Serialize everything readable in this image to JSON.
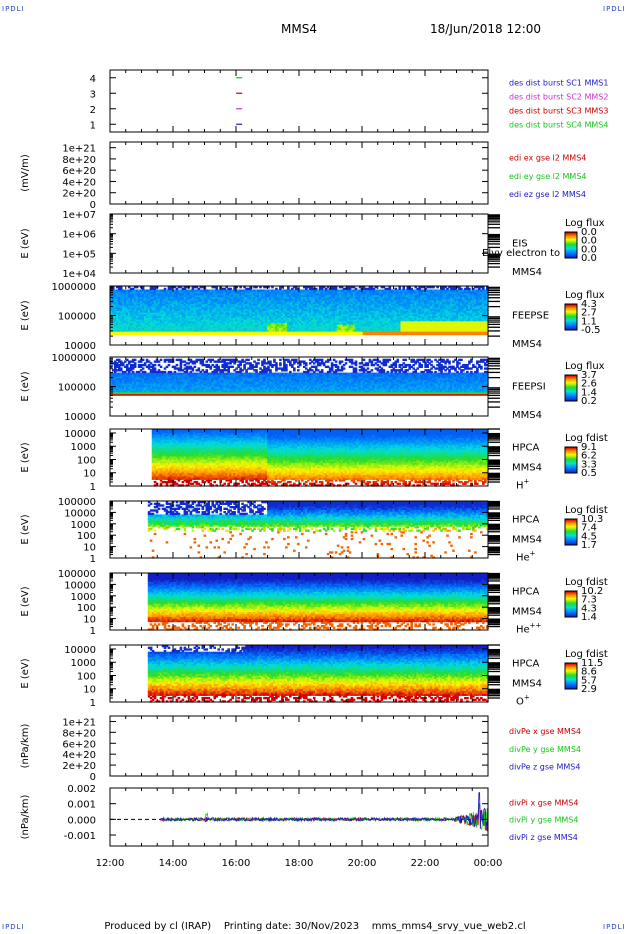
{
  "header": {
    "corner_left_top": "IPDLI",
    "corner_right_top": "IPDLI",
    "corner_left_bottom": "IPDLI",
    "corner_right_bottom": "IPDLI",
    "spacecraft": "MMS4",
    "datetime": "18/Jun/2018 12:00"
  },
  "footer": {
    "text": "Produced by cl (IRAP)    Printing date: 30/Nov/2023    mms_mms4_srvy_vue_web2.cl"
  },
  "colors": {
    "red": "#c80000",
    "green": "#19c219",
    "blue": "#1a1ac8",
    "magenta": "#c832c8"
  },
  "chart_data": [
    {
      "type": "line",
      "panel": "burst",
      "ylabel": "",
      "ylim": [
        0.5,
        4.5
      ],
      "yticks": [
        "4",
        "3",
        "2",
        "1"
      ],
      "ytick_values": [
        4,
        3,
        2,
        1
      ],
      "legend": [
        {
          "name": "des dist burst SC1 MMS1",
          "color": "#1a1ac8"
        },
        {
          "name": "des dist burst SC2 MMS2",
          "color": "#c832c8"
        },
        {
          "name": "des dist burst SC3 MMS3",
          "color": "#c80000"
        },
        {
          "name": "des dist burst SC4 MMS4",
          "color": "#19c219"
        }
      ],
      "series": [
        {
          "name": "des dist burst SC1 MMS1",
          "x": [
            16.1
          ],
          "values": [
            1
          ]
        },
        {
          "name": "des dist burst SC2 MMS2",
          "x": [
            16.1
          ],
          "values": [
            2
          ]
        },
        {
          "name": "des dist burst SC3 MMS3",
          "x": [
            16.1
          ],
          "values": [
            3
          ]
        },
        {
          "name": "des dist burst SC4 MMS4",
          "x": [
            16.1
          ],
          "values": [
            4
          ]
        }
      ]
    },
    {
      "type": "line",
      "panel": "edi",
      "ylabel": "(mV/m)",
      "ylim": [
        0,
        1.1e+21
      ],
      "yticks": [
        "1e+21",
        "8e+20",
        "6e+20",
        "4e+20",
        "2e+20",
        "0"
      ],
      "ytick_values": [
        1e+21,
        8e+20,
        6e+20,
        4e+20,
        2e+20,
        0
      ],
      "zero_line": true,
      "legend": [
        {
          "name": "edi ex gse l2 MMS4",
          "color": "#c80000"
        },
        {
          "name": "edi ey gse l2 MMS4",
          "color": "#19c219"
        },
        {
          "name": "edi ez gse l2 MMS4",
          "color": "#1a1ac8"
        }
      ]
    },
    {
      "type": "heatmap",
      "panel": "eis",
      "ylabel": "E (eV)",
      "log": true,
      "ylim": [
        10000,
        10000000
      ],
      "yticks": [
        "1e+07",
        "1e+06",
        "1e+05",
        "1e+04"
      ],
      "ytick_values": [
        10000000,
        1000000,
        100000,
        10000
      ],
      "instrument": "EIS",
      "spacecraft": "MMS4",
      "overlay_text": "Elvy electron to",
      "colorbar": {
        "title": "Log flux",
        "labels": [
          "0.0",
          "0.0",
          "0.0",
          "0.0"
        ]
      },
      "empty": true
    },
    {
      "type": "heatmap",
      "panel": "feepse",
      "ylabel": "E (eV)",
      "log": true,
      "ylim": [
        10000,
        1000000
      ],
      "yticks": [
        "1000000",
        "100000",
        "10000"
      ],
      "ytick_values": [
        1000000,
        100000,
        10000
      ],
      "instrument": "FEEPSE",
      "spacecraft": "MMS4",
      "colorbar": {
        "title": "Log flux",
        "labels": [
          "4.3",
          "2.7",
          "1.1",
          "-0.5"
        ]
      }
    },
    {
      "type": "heatmap",
      "panel": "feepsi",
      "ylabel": "E (eV)",
      "log": true,
      "ylim": [
        10000,
        1000000
      ],
      "yticks": [
        "1000000",
        "100000",
        "10000"
      ],
      "ytick_values": [
        1000000,
        100000,
        10000
      ],
      "instrument": "FEEPSI",
      "spacecraft": "MMS4",
      "colorbar": {
        "title": "Log flux",
        "labels": [
          "3.7",
          "2.6",
          "1.4",
          "0.2"
        ]
      }
    },
    {
      "type": "heatmap",
      "panel": "hpca_h",
      "ylabel": "E (eV)",
      "log": true,
      "ylim": [
        1,
        20000
      ],
      "yticks": [
        "10000",
        "1000",
        "100",
        "10",
        "1"
      ],
      "ytick_values": [
        10000,
        1000,
        100,
        10,
        1
      ],
      "instrument": "HPCA",
      "spacecraft": "MMS4",
      "species": "H",
      "species_sup": "+",
      "colorbar": {
        "title": "Log fdist",
        "labels": [
          "9.1",
          "6.2",
          "3.3",
          "0.5"
        ]
      }
    },
    {
      "type": "heatmap",
      "panel": "hpca_he",
      "ylabel": "E (eV)",
      "log": true,
      "ylim": [
        1,
        100000
      ],
      "yticks": [
        "100000",
        "10000",
        "1000",
        "100",
        "10",
        "1"
      ],
      "ytick_values": [
        100000,
        10000,
        1000,
        100,
        10,
        1
      ],
      "instrument": "HPCA",
      "spacecraft": "MMS4",
      "species": "He",
      "species_sup": "+",
      "colorbar": {
        "title": "Log fdist",
        "labels": [
          "10.3",
          "7.4",
          "4.5",
          "1.7"
        ]
      }
    },
    {
      "type": "heatmap",
      "panel": "hpca_hepp",
      "ylabel": "E (eV)",
      "log": true,
      "ylim": [
        1,
        100000
      ],
      "yticks": [
        "100000",
        "10000",
        "1000",
        "100",
        "10",
        "1"
      ],
      "ytick_values": [
        100000,
        10000,
        1000,
        100,
        10,
        1
      ],
      "instrument": "HPCA",
      "spacecraft": "MMS4",
      "species": "He",
      "species_sup": "++",
      "colorbar": {
        "title": "Log fdist",
        "labels": [
          "10.2",
          "7.3",
          "4.3",
          "1.4"
        ]
      }
    },
    {
      "type": "heatmap",
      "panel": "hpca_o",
      "ylabel": "E (eV)",
      "log": true,
      "ylim": [
        1,
        20000
      ],
      "yticks": [
        "10000",
        "1000",
        "100",
        "10",
        "1"
      ],
      "ytick_values": [
        10000,
        1000,
        100,
        10,
        1
      ],
      "instrument": "HPCA",
      "spacecraft": "MMS4",
      "species": "O",
      "species_sup": "+",
      "colorbar": {
        "title": "Log fdist",
        "labels": [
          "11.5",
          "8.6",
          "5.7",
          "2.9"
        ]
      }
    },
    {
      "type": "line",
      "panel": "divpe",
      "ylabel": "(nPa/km)",
      "ylim": [
        0,
        1.1e+21
      ],
      "yticks": [
        "1e+21",
        "8e+20",
        "6e+20",
        "4e+20",
        "2e+20",
        "0"
      ],
      "ytick_values": [
        1e+21,
        8e+20,
        6e+20,
        4e+20,
        2e+20,
        0
      ],
      "zero_line": true,
      "legend": [
        {
          "name": "divPe x gse MMS4",
          "color": "#c80000"
        },
        {
          "name": "divPe y gse MMS4",
          "color": "#19c219"
        },
        {
          "name": "divPe z gse MMS4",
          "color": "#1a1ac8"
        }
      ]
    },
    {
      "type": "line",
      "panel": "divpi",
      "ylabel": "(nPa/km)",
      "ylim": [
        -0.0017,
        0.002
      ],
      "yticks": [
        "0.002",
        "0.001",
        "0.000",
        "-0.001"
      ],
      "ytick_values": [
        0.002,
        0.001,
        0.0,
        -0.001
      ],
      "zero_line": true,
      "legend": [
        {
          "name": "divPi x gse MMS4",
          "color": "#c80000"
        },
        {
          "name": "divPi y gse MMS4",
          "color": "#19c219"
        },
        {
          "name": "divPi z gse MMS4",
          "color": "#1a1ac8"
        }
      ],
      "data_start_hour": 13.6,
      "typical_amplitude": 0.0001,
      "peak_near_end": 0.0017
    }
  ],
  "x_axis": {
    "ticks": [
      "12:00",
      "14:00",
      "16:00",
      "18:00",
      "20:00",
      "22:00",
      "00:00"
    ],
    "tick_hours": [
      12,
      14,
      16,
      18,
      20,
      22,
      24
    ],
    "range_hours": [
      12,
      24
    ]
  }
}
